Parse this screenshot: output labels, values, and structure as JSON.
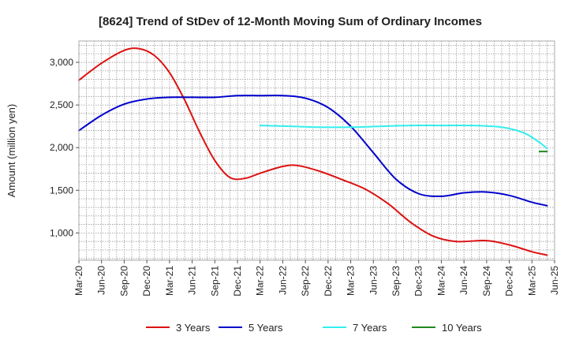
{
  "chart_data": {
    "type": "line",
    "title": "[8624]  Trend of StDev of 12-Month Moving Sum of Ordinary Incomes",
    "ylabel": "Amount (million yen)",
    "xlabel": "",
    "ylim": [
      680,
      3250
    ],
    "yticks": [
      1000,
      1500,
      2000,
      2500,
      3000
    ],
    "ytick_labels": [
      "1,000",
      "1,500",
      "2,000",
      "2,500",
      "3,000"
    ],
    "xrange": [
      0,
      63
    ],
    "x_tick_labels": [
      "Mar-20",
      "Jun-20",
      "Sep-20",
      "Dec-20",
      "Mar-21",
      "Jun-21",
      "Sep-21",
      "Dec-21",
      "Mar-22",
      "Jun-22",
      "Sep-22",
      "Dec-22",
      "Mar-23",
      "Jun-23",
      "Sep-23",
      "Dec-23",
      "Mar-24",
      "Jun-24",
      "Sep-24",
      "Dec-24",
      "Mar-25",
      "Jun-25"
    ],
    "x_unit": "months since Mar-20",
    "grid": true,
    "legend_position": "bottom",
    "series": [
      {
        "name": "3 Years",
        "color": "#dd1111",
        "points": [
          [
            0,
            2790
          ],
          [
            3,
            2990
          ],
          [
            6,
            3140
          ],
          [
            8,
            3160
          ],
          [
            10,
            3080
          ],
          [
            12,
            2880
          ],
          [
            14,
            2560
          ],
          [
            16,
            2180
          ],
          [
            18,
            1850
          ],
          [
            20,
            1650
          ],
          [
            22,
            1640
          ],
          [
            24,
            1700
          ],
          [
            27,
            1780
          ],
          [
            29,
            1790
          ],
          [
            32,
            1720
          ],
          [
            35,
            1620
          ],
          [
            38,
            1510
          ],
          [
            41,
            1340
          ],
          [
            44,
            1120
          ],
          [
            47,
            960
          ],
          [
            50,
            900
          ],
          [
            54,
            910
          ],
          [
            57,
            860
          ],
          [
            60,
            780
          ],
          [
            62,
            740
          ]
        ]
      },
      {
        "name": "5 Years",
        "color": "#0000cc",
        "points": [
          [
            0,
            2200
          ],
          [
            3,
            2380
          ],
          [
            6,
            2510
          ],
          [
            9,
            2570
          ],
          [
            12,
            2590
          ],
          [
            15,
            2590
          ],
          [
            18,
            2590
          ],
          [
            21,
            2610
          ],
          [
            24,
            2610
          ],
          [
            27,
            2610
          ],
          [
            30,
            2580
          ],
          [
            33,
            2470
          ],
          [
            36,
            2250
          ],
          [
            39,
            1940
          ],
          [
            42,
            1630
          ],
          [
            45,
            1460
          ],
          [
            48,
            1430
          ],
          [
            51,
            1470
          ],
          [
            54,
            1480
          ],
          [
            57,
            1440
          ],
          [
            60,
            1360
          ],
          [
            62,
            1320
          ]
        ]
      },
      {
        "name": "7 Years",
        "color": "#33eeee",
        "points": [
          [
            24,
            2260
          ],
          [
            28,
            2250
          ],
          [
            32,
            2240
          ],
          [
            36,
            2240
          ],
          [
            40,
            2250
          ],
          [
            44,
            2260
          ],
          [
            48,
            2260
          ],
          [
            52,
            2260
          ],
          [
            56,
            2240
          ],
          [
            59,
            2170
          ],
          [
            61,
            2060
          ],
          [
            62,
            1990
          ]
        ]
      },
      {
        "name": "10 Years",
        "color": "#228822",
        "points": [
          [
            61,
            1955
          ],
          [
            62,
            1955
          ]
        ]
      }
    ]
  }
}
